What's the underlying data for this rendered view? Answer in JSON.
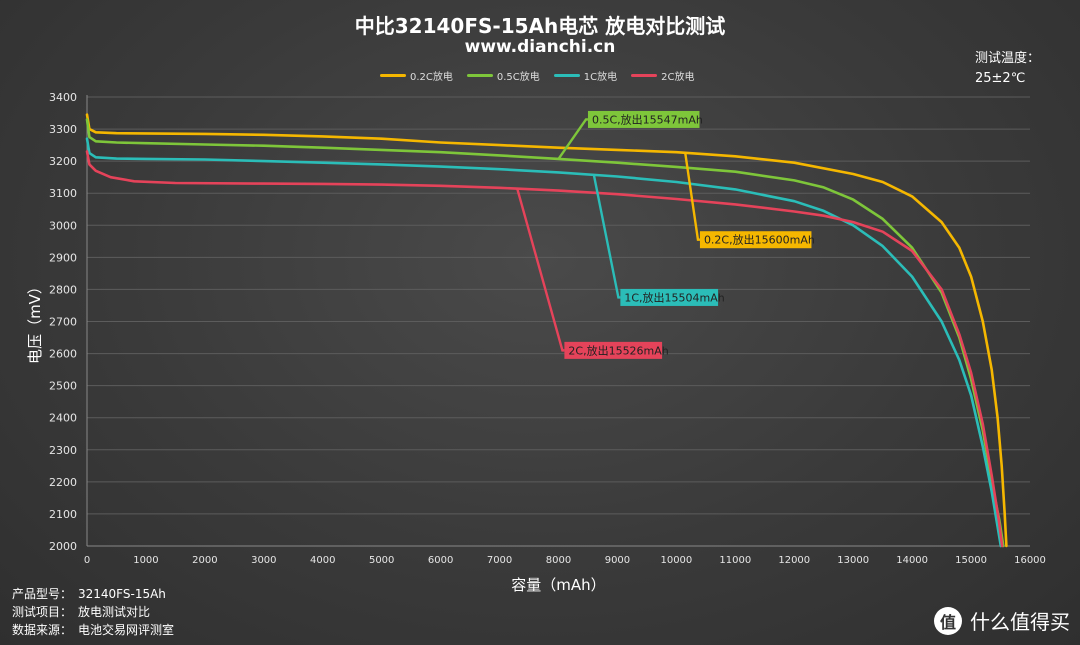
{
  "header": {
    "title": "中比32140FS-15Ah电芯 放电对比测试",
    "subtitle": "www.dianchi.cn",
    "temp_label": "测试温度：",
    "temp_value": "25±2℃"
  },
  "info": {
    "rows": [
      {
        "key": "产品型号：",
        "value": "32140FS-15Ah"
      },
      {
        "key": "测试项目：",
        "value": "放电测试对比"
      },
      {
        "key": "数据来源：",
        "value": "电池交易网评测室"
      }
    ]
  },
  "watermark": {
    "logo": "值",
    "text": "什么值得买"
  },
  "chart_data": {
    "type": "line",
    "title": "中比32140FS-15Ah电芯 放电对比测试",
    "xlabel": "容量（mAh）",
    "ylabel": "电压（mV）",
    "xlim": [
      0,
      16000
    ],
    "ylim": [
      2000,
      3400
    ],
    "xticks": [
      0,
      1000,
      2000,
      3000,
      4000,
      5000,
      6000,
      7000,
      8000,
      9000,
      10000,
      11000,
      12000,
      13000,
      14000,
      15000,
      16000
    ],
    "yticks": [
      2000,
      2100,
      2200,
      2300,
      2400,
      2500,
      2600,
      2700,
      2800,
      2900,
      3000,
      3100,
      3200,
      3300,
      3400
    ],
    "grid": true,
    "legend_position": "top",
    "series": [
      {
        "name": "0.2C放电",
        "color": "#f5b700",
        "annotation": "0.2C,放出15600mAh",
        "points": [
          [
            0,
            3345
          ],
          [
            40,
            3300
          ],
          [
            150,
            3290
          ],
          [
            500,
            3287
          ],
          [
            2000,
            3285
          ],
          [
            3000,
            3282
          ],
          [
            4000,
            3277
          ],
          [
            5000,
            3270
          ],
          [
            6000,
            3258
          ],
          [
            7000,
            3250
          ],
          [
            8000,
            3242
          ],
          [
            9000,
            3235
          ],
          [
            10000,
            3228
          ],
          [
            11000,
            3215
          ],
          [
            12000,
            3195
          ],
          [
            13000,
            3160
          ],
          [
            13500,
            3135
          ],
          [
            14000,
            3090
          ],
          [
            14500,
            3010
          ],
          [
            14800,
            2930
          ],
          [
            15000,
            2840
          ],
          [
            15200,
            2700
          ],
          [
            15350,
            2550
          ],
          [
            15450,
            2400
          ],
          [
            15520,
            2250
          ],
          [
            15570,
            2100
          ],
          [
            15600,
            2000
          ]
        ]
      },
      {
        "name": "0.5C放电",
        "color": "#7ec63a",
        "annotation": "0.5C,放出15547mAh",
        "points": [
          [
            0,
            3330
          ],
          [
            40,
            3275
          ],
          [
            150,
            3262
          ],
          [
            500,
            3258
          ],
          [
            1000,
            3256
          ],
          [
            2000,
            3252
          ],
          [
            3000,
            3248
          ],
          [
            4000,
            3242
          ],
          [
            5000,
            3235
          ],
          [
            6000,
            3228
          ],
          [
            7000,
            3218
          ],
          [
            8000,
            3207
          ],
          [
            9000,
            3195
          ],
          [
            10000,
            3182
          ],
          [
            11000,
            3167
          ],
          [
            12000,
            3140
          ],
          [
            12500,
            3118
          ],
          [
            13000,
            3080
          ],
          [
            13500,
            3020
          ],
          [
            14000,
            2930
          ],
          [
            14500,
            2790
          ],
          [
            14800,
            2650
          ],
          [
            15000,
            2520
          ],
          [
            15200,
            2360
          ],
          [
            15350,
            2200
          ],
          [
            15480,
            2080
          ],
          [
            15547,
            2000
          ]
        ]
      },
      {
        "name": "1C放电",
        "color": "#2bbdb8",
        "annotation": "1C,放出15504mAh",
        "points": [
          [
            0,
            3270
          ],
          [
            40,
            3225
          ],
          [
            150,
            3212
          ],
          [
            500,
            3208
          ],
          [
            1000,
            3207
          ],
          [
            2000,
            3205
          ],
          [
            3000,
            3200
          ],
          [
            4000,
            3195
          ],
          [
            5000,
            3190
          ],
          [
            6000,
            3183
          ],
          [
            7000,
            3175
          ],
          [
            8000,
            3165
          ],
          [
            9000,
            3152
          ],
          [
            10000,
            3135
          ],
          [
            11000,
            3112
          ],
          [
            12000,
            3075
          ],
          [
            12500,
            3045
          ],
          [
            13000,
            3000
          ],
          [
            13500,
            2935
          ],
          [
            14000,
            2840
          ],
          [
            14500,
            2700
          ],
          [
            14800,
            2580
          ],
          [
            15000,
            2470
          ],
          [
            15200,
            2310
          ],
          [
            15350,
            2170
          ],
          [
            15450,
            2060
          ],
          [
            15504,
            2000
          ]
        ]
      },
      {
        "name": "2C放电",
        "color": "#e5435a",
        "annotation": "2C,放出15526mAh",
        "points": [
          [
            0,
            3230
          ],
          [
            40,
            3190
          ],
          [
            150,
            3170
          ],
          [
            400,
            3150
          ],
          [
            800,
            3137
          ],
          [
            1500,
            3132
          ],
          [
            3000,
            3130
          ],
          [
            4000,
            3129
          ],
          [
            5000,
            3127
          ],
          [
            6000,
            3123
          ],
          [
            7000,
            3117
          ],
          [
            8000,
            3108
          ],
          [
            9000,
            3097
          ],
          [
            10000,
            3082
          ],
          [
            11000,
            3065
          ],
          [
            12000,
            3043
          ],
          [
            12500,
            3030
          ],
          [
            13000,
            3010
          ],
          [
            13500,
            2980
          ],
          [
            14000,
            2920
          ],
          [
            14500,
            2800
          ],
          [
            14800,
            2660
          ],
          [
            15000,
            2540
          ],
          [
            15200,
            2380
          ],
          [
            15350,
            2220
          ],
          [
            15470,
            2080
          ],
          [
            15526,
            2000
          ]
        ]
      }
    ]
  }
}
